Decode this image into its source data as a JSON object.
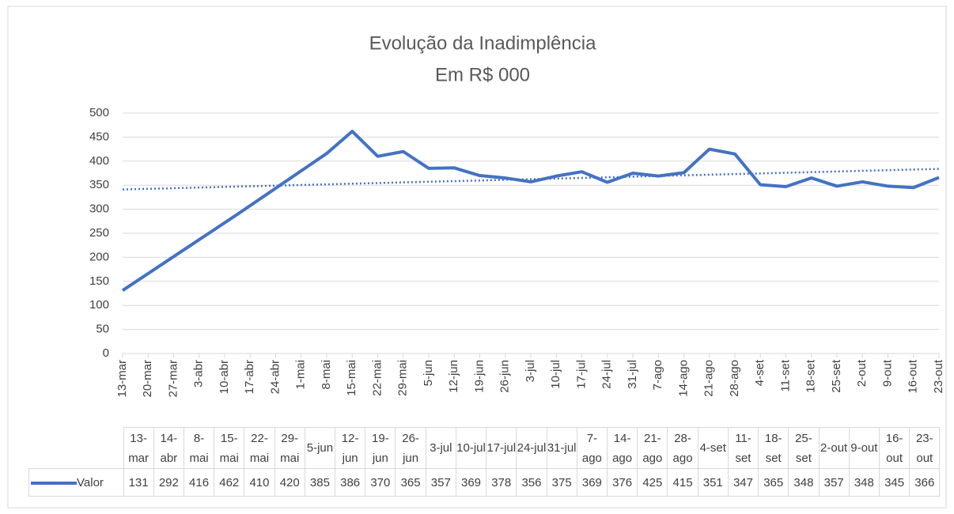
{
  "chart_data": {
    "type": "line",
    "title": "Evolução da Inadimplência",
    "subtitle": "Em R$ 000",
    "categories": [
      "13-mar",
      "14-abr",
      "8-mai",
      "15-mai",
      "22-mai",
      "29-mai",
      "5-jun",
      "12-jun",
      "19-jun",
      "26-jun",
      "3-jul",
      "10-jul",
      "17-jul",
      "24-jul",
      "31-jul",
      "7-ago",
      "14-ago",
      "21-ago",
      "28-ago",
      "4-set",
      "11-set",
      "18-set",
      "25-set",
      "2-out",
      "9-out",
      "16-out",
      "23-out"
    ],
    "series": [
      {
        "name": "Valor",
        "color": "#4472c4",
        "values": [
          131,
          292,
          416,
          462,
          410,
          420,
          385,
          386,
          370,
          365,
          357,
          369,
          378,
          356,
          375,
          369,
          376,
          425,
          415,
          351,
          347,
          365,
          348,
          357,
          348,
          345,
          366
        ]
      }
    ],
    "xlim": [
      "13-mar",
      "23-out"
    ],
    "xticks": [
      "13-mar",
      "20-mar",
      "27-mar",
      "3-abr",
      "10-abr",
      "17-abr",
      "24-abr",
      "1-mai",
      "8-mai",
      "15-mai",
      "22-mai",
      "29-mai",
      "5-jun",
      "12-jun",
      "19-jun",
      "26-jun",
      "3-jul",
      "10-jul",
      "17-jul",
      "24-jul",
      "31-jul",
      "7-ago",
      "14-ago",
      "21-ago",
      "28-ago",
      "4-set",
      "11-set",
      "18-set",
      "25-set",
      "2-out",
      "9-out",
      "16-out",
      "23-out"
    ],
    "ylim": [
      0,
      500
    ],
    "yticks": [
      0,
      50,
      100,
      150,
      200,
      250,
      300,
      350,
      400,
      450,
      500
    ],
    "grid": true,
    "trendline": "linear"
  }
}
